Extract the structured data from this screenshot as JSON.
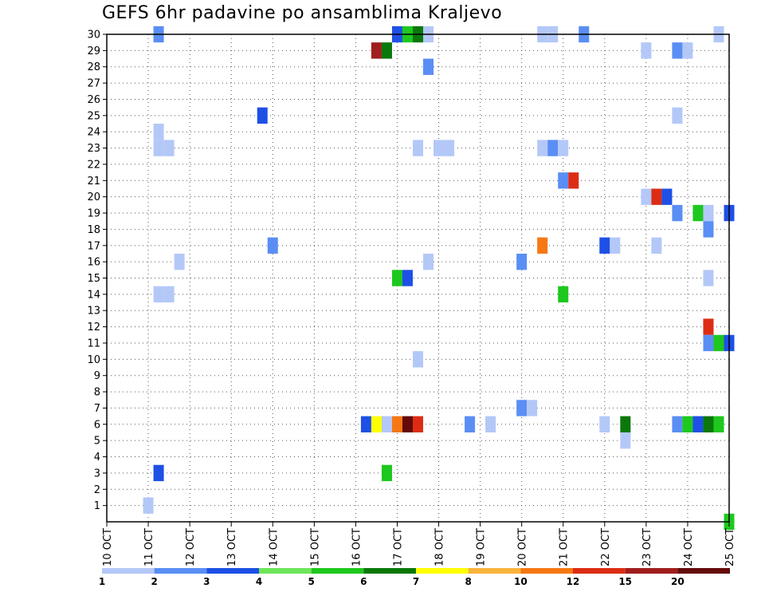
{
  "chart_data": {
    "type": "heatmap",
    "title": "GEFS 6hr padavine po ansamblima Kraljevo",
    "xlabel": "",
    "ylabel": "",
    "x_unit": "6-hour steps from 10 OCT 00Z",
    "x_range": [
      0,
      60
    ],
    "y_range": [
      0,
      30
    ],
    "x_tick_labels": [
      "10 OCT",
      "11 OCT",
      "12 OCT",
      "13 OCT",
      "14 OCT",
      "15 OCT",
      "16 OCT",
      "17 OCT",
      "18 OCT",
      "19 OCT",
      "20 OCT",
      "21 OCT",
      "22 OCT",
      "23 OCT",
      "24 OCT",
      "25 OCT"
    ],
    "y_tick_labels": [
      "1",
      "2",
      "3",
      "4",
      "5",
      "6",
      "7",
      "8",
      "9",
      "10",
      "11",
      "12",
      "13",
      "14",
      "15",
      "16",
      "17",
      "18",
      "19",
      "20",
      "21",
      "22",
      "23",
      "24",
      "25",
      "26",
      "27",
      "28",
      "29",
      "30"
    ],
    "grid": true,
    "legend": {
      "placement": "bottom",
      "labels": [
        "1",
        "2",
        "3",
        "4",
        "5",
        "6",
        "7",
        "8",
        "10",
        "12",
        "15",
        "20"
      ],
      "colors": [
        "#b4c8f8",
        "#5a8ef5",
        "#1e50e6",
        "#6ee65a",
        "#1ec81e",
        "#0a780a",
        "#ffff00",
        "#fab43c",
        "#f57814",
        "#dc2d14",
        "#a01e1e",
        "#640a0a"
      ]
    },
    "cells": [
      {
        "m": 30,
        "x": 5,
        "v": 2
      },
      {
        "m": 30,
        "x": 28,
        "v": 3
      },
      {
        "m": 30,
        "x": 29,
        "v": 5
      },
      {
        "m": 30,
        "x": 30,
        "v": 6
      },
      {
        "m": 30,
        "x": 31,
        "v": 1
      },
      {
        "m": 30,
        "x": 42,
        "v": 1
      },
      {
        "m": 30,
        "x": 43,
        "v": 1
      },
      {
        "m": 30,
        "x": 46,
        "v": 2
      },
      {
        "m": 30,
        "x": 59,
        "v": 1
      },
      {
        "m": 29,
        "x": 26,
        "v": 15
      },
      {
        "m": 29,
        "x": 27,
        "v": 6
      },
      {
        "m": 29,
        "x": 52,
        "v": 1
      },
      {
        "m": 29,
        "x": 55,
        "v": 2
      },
      {
        "m": 29,
        "x": 56,
        "v": 1
      },
      {
        "m": 28,
        "x": 31,
        "v": 2
      },
      {
        "m": 25,
        "x": 15,
        "v": 3
      },
      {
        "m": 25,
        "x": 55,
        "v": 1
      },
      {
        "m": 24,
        "x": 5,
        "v": 1
      },
      {
        "m": 23,
        "x": 5,
        "v": 1
      },
      {
        "m": 23,
        "x": 6,
        "v": 1
      },
      {
        "m": 23,
        "x": 30,
        "v": 1
      },
      {
        "m": 23,
        "x": 32,
        "v": 1
      },
      {
        "m": 23,
        "x": 33,
        "v": 1
      },
      {
        "m": 23,
        "x": 42,
        "v": 1
      },
      {
        "m": 23,
        "x": 43,
        "v": 2
      },
      {
        "m": 23,
        "x": 44,
        "v": 1
      },
      {
        "m": 21,
        "x": 44,
        "v": 2
      },
      {
        "m": 21,
        "x": 45,
        "v": 12
      },
      {
        "m": 20,
        "x": 52,
        "v": 1
      },
      {
        "m": 20,
        "x": 53,
        "v": 12
      },
      {
        "m": 20,
        "x": 54,
        "v": 3
      },
      {
        "m": 19,
        "x": 55,
        "v": 2
      },
      {
        "m": 19,
        "x": 57,
        "v": 5
      },
      {
        "m": 19,
        "x": 58,
        "v": 1
      },
      {
        "m": 19,
        "x": 60,
        "v": 3
      },
      {
        "m": 18,
        "x": 58,
        "v": 2
      },
      {
        "m": 17,
        "x": 16,
        "v": 2
      },
      {
        "m": 17,
        "x": 42,
        "v": 10
      },
      {
        "m": 17,
        "x": 48,
        "v": 3
      },
      {
        "m": 17,
        "x": 49,
        "v": 1
      },
      {
        "m": 17,
        "x": 53,
        "v": 1
      },
      {
        "m": 16,
        "x": 7,
        "v": 1
      },
      {
        "m": 16,
        "x": 31,
        "v": 1
      },
      {
        "m": 16,
        "x": 40,
        "v": 2
      },
      {
        "m": 15,
        "x": 28,
        "v": 5
      },
      {
        "m": 15,
        "x": 29,
        "v": 3
      },
      {
        "m": 15,
        "x": 58,
        "v": 1
      },
      {
        "m": 14,
        "x": 5,
        "v": 1
      },
      {
        "m": 14,
        "x": 6,
        "v": 1
      },
      {
        "m": 14,
        "x": 44,
        "v": 5
      },
      {
        "m": 12,
        "x": 58,
        "v": 12
      },
      {
        "m": 11,
        "x": 58,
        "v": 2
      },
      {
        "m": 11,
        "x": 59,
        "v": 5
      },
      {
        "m": 11,
        "x": 60,
        "v": 3
      },
      {
        "m": 10,
        "x": 30,
        "v": 1
      },
      {
        "m": 7,
        "x": 40,
        "v": 2
      },
      {
        "m": 7,
        "x": 41,
        "v": 1
      },
      {
        "m": 6,
        "x": 25,
        "v": 3
      },
      {
        "m": 6,
        "x": 26,
        "v": 7
      },
      {
        "m": 6,
        "x": 27,
        "v": 1
      },
      {
        "m": 6,
        "x": 28,
        "v": 10
      },
      {
        "m": 6,
        "x": 29,
        "v": 20
      },
      {
        "m": 6,
        "x": 30,
        "v": 12
      },
      {
        "m": 6,
        "x": 35,
        "v": 2
      },
      {
        "m": 6,
        "x": 37,
        "v": 1
      },
      {
        "m": 6,
        "x": 48,
        "v": 1
      },
      {
        "m": 6,
        "x": 50,
        "v": 6
      },
      {
        "m": 6,
        "x": 55,
        "v": 2
      },
      {
        "m": 6,
        "x": 56,
        "v": 5
      },
      {
        "m": 6,
        "x": 57,
        "v": 3
      },
      {
        "m": 6,
        "x": 58,
        "v": 6
      },
      {
        "m": 6,
        "x": 59,
        "v": 5
      },
      {
        "m": 5,
        "x": 50,
        "v": 1
      },
      {
        "m": 3,
        "x": 5,
        "v": 3
      },
      {
        "m": 3,
        "x": 27,
        "v": 5
      },
      {
        "m": 1,
        "x": 4,
        "v": 1
      },
      {
        "m": 0,
        "x": 60,
        "v": 5
      }
    ]
  }
}
